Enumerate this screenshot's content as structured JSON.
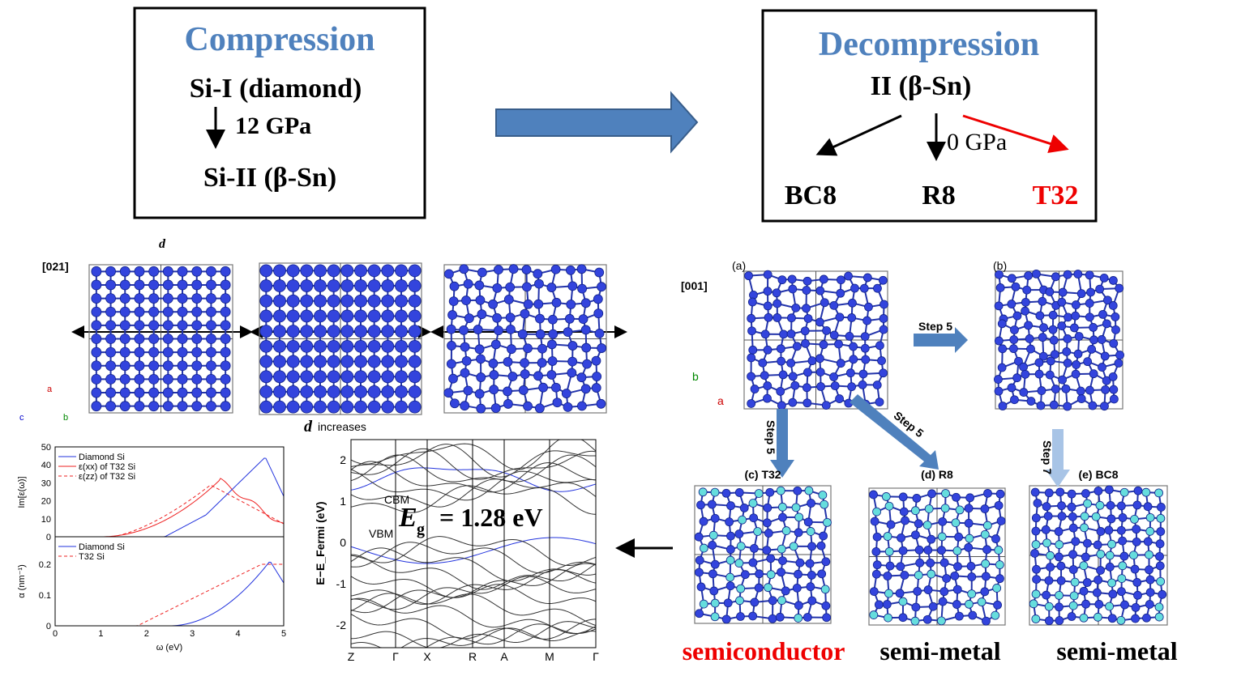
{
  "compression": {
    "title": "Compression",
    "start": "Si-I (diamond)",
    "pressure": "12 GPa",
    "end": "Si-II (β-Sn)"
  },
  "decompression": {
    "title": "Decompression",
    "start": "II (β-Sn)",
    "pressure": "0 GPa",
    "products": [
      "BC8",
      "R8",
      "T32"
    ]
  },
  "strain_panel": {
    "direction": "[021]",
    "spacing": "d",
    "caption_symbol": "d",
    "caption": "increases",
    "axes": [
      "a",
      "c",
      "b"
    ]
  },
  "relax_panel": {
    "direction": "[001]",
    "panels": [
      "(a)",
      "(b)"
    ],
    "steps": [
      "Step 5",
      "Step 5",
      "Step 5",
      "Step 7"
    ],
    "products": [
      "(c) T32",
      "(d) R8",
      "(e) BC8"
    ],
    "axes": [
      "b",
      "a"
    ]
  },
  "properties": [
    "semiconductor",
    "semi-metal",
    "semi-metal"
  ],
  "optical_plot": {
    "top": {
      "ylabel": "Im[ε(ω)]",
      "legend": [
        "Diamond Si",
        "ε(xx) of T32 Si",
        "ε(zz) of T32 Si"
      ],
      "yticks": [
        "0",
        "10",
        "20",
        "30",
        "40",
        "50"
      ]
    },
    "bottom": {
      "ylabel": "α (nm⁻¹)",
      "legend": [
        "Diamond Si",
        "T32 Si"
      ],
      "yticks": [
        "0",
        "0.1",
        "0.2"
      ]
    },
    "xlabel": "ω (eV)",
    "xticks": [
      "0",
      "1",
      "2",
      "3",
      "4",
      "5"
    ]
  },
  "band_plot": {
    "ylabel": "E−E_Fermi (eV)",
    "yticks": [
      "2",
      "1",
      "0",
      "-1",
      "-2"
    ],
    "xticks": [
      "Z",
      "Γ",
      "X",
      "R",
      "A",
      "M",
      "Γ"
    ],
    "cbm": "CBM",
    "vbm": "VBM",
    "gap_symbol": "E",
    "gap_sub": "g",
    "gap_value": "= 1.28 eV"
  }
}
